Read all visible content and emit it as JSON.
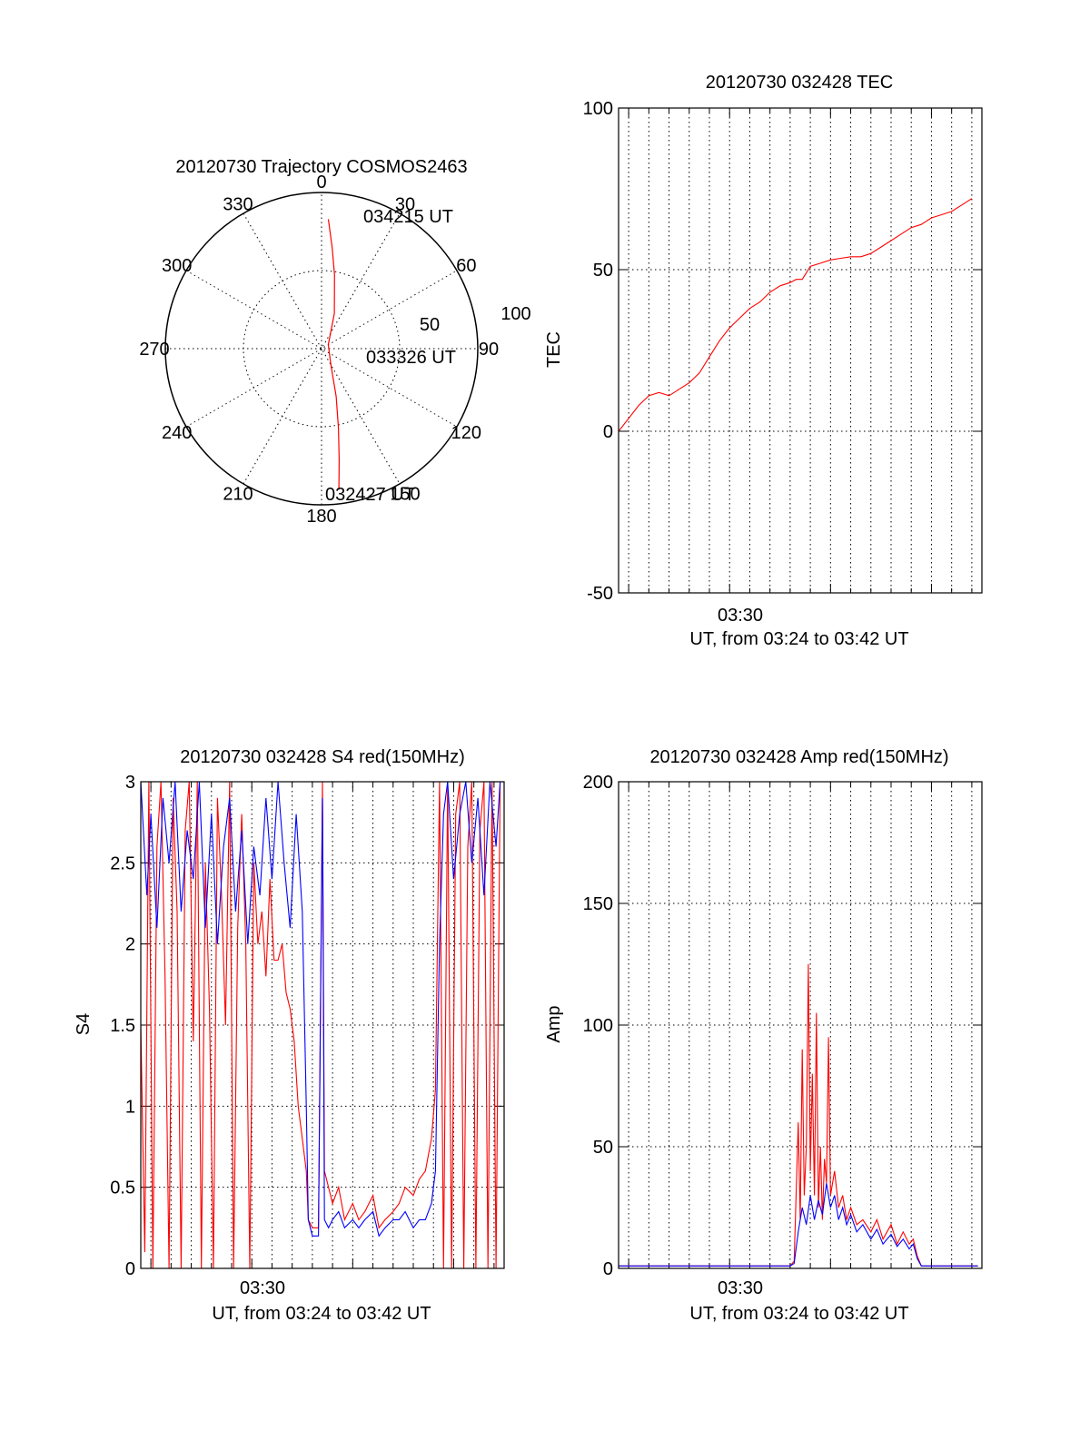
{
  "chart_data": [
    {
      "type": "polar",
      "title": "20120730 Trajectory COSMOS2463",
      "azimuth_labels": [
        "0",
        "30",
        "60",
        "90",
        "120",
        "150",
        "180",
        "210",
        "240",
        "270",
        "300",
        "330"
      ],
      "radial_labels": [
        "50",
        "100"
      ],
      "radial_max": 100,
      "trajectory": {
        "color": "#ff0000",
        "points": [
          {
            "az": 3,
            "r": 83
          },
          {
            "az": 6,
            "r": 65
          },
          {
            "az": 10,
            "r": 48
          },
          {
            "az": 20,
            "r": 24
          },
          {
            "az": 60,
            "r": 5
          },
          {
            "az": 150,
            "r": 12
          },
          {
            "az": 163,
            "r": 32
          },
          {
            "az": 168,
            "r": 52
          },
          {
            "az": 171,
            "r": 72
          },
          {
            "az": 173,
            "r": 91
          }
        ]
      },
      "time_labels": [
        "034215 UT",
        "033326 UT",
        "032427 UT"
      ]
    },
    {
      "type": "line",
      "title": "20120730 032428 TEC",
      "ylabel": "TEC",
      "xlabel": "UT, from 03:24 to 03:42 UT",
      "x_tick_labels": [
        "03:30"
      ],
      "xlim_min": [
        24.5,
        42.5
      ],
      "ylim": [
        -50,
        100
      ],
      "y_ticks": [
        -50,
        0,
        50,
        100
      ],
      "grid": true,
      "series": [
        {
          "color": "#ff0000",
          "points": [
            [
              24.5,
              0
            ],
            [
              25.0,
              4
            ],
            [
              25.5,
              8
            ],
            [
              26.0,
              11
            ],
            [
              26.5,
              12
            ],
            [
              27.0,
              11
            ],
            [
              27.5,
              13
            ],
            [
              28.0,
              15
            ],
            [
              28.5,
              18
            ],
            [
              29.0,
              23
            ],
            [
              29.5,
              28
            ],
            [
              30.0,
              32
            ],
            [
              30.5,
              35
            ],
            [
              31.0,
              38
            ],
            [
              31.5,
              40
            ],
            [
              32.0,
              43
            ],
            [
              32.5,
              45
            ],
            [
              33.0,
              46
            ],
            [
              33.3,
              47
            ],
            [
              33.6,
              47
            ],
            [
              34.0,
              51
            ],
            [
              34.5,
              52
            ],
            [
              35.0,
              53
            ],
            [
              35.5,
              53.5
            ],
            [
              36.0,
              54
            ],
            [
              36.5,
              54
            ],
            [
              37.0,
              55
            ],
            [
              37.5,
              57
            ],
            [
              38.0,
              59
            ],
            [
              38.5,
              61
            ],
            [
              39.0,
              63
            ],
            [
              39.5,
              64
            ],
            [
              40.0,
              66
            ],
            [
              40.5,
              67
            ],
            [
              41.0,
              68
            ],
            [
              41.5,
              70
            ],
            [
              42.0,
              72
            ]
          ]
        }
      ]
    },
    {
      "type": "line",
      "title": "20120730 032428 S4 red(150MHz)",
      "ylabel": "S4",
      "xlabel": "UT, from 03:24 to 03:42 UT",
      "x_tick_labels": [
        "03:30"
      ],
      "xlim_min": [
        24.5,
        42.5
      ],
      "ylim": [
        0,
        3
      ],
      "y_ticks": [
        0,
        0.5,
        1,
        1.5,
        2,
        2.5,
        3
      ],
      "grid": true,
      "series": [
        {
          "color": "#ff0000",
          "points": [
            [
              24.5,
              1.5
            ],
            [
              24.7,
              0.1
            ],
            [
              24.9,
              3
            ],
            [
              25.1,
              0
            ],
            [
              25.3,
              2.6
            ],
            [
              25.5,
              3
            ],
            [
              25.7,
              1.8
            ],
            [
              25.9,
              0
            ],
            [
              26.1,
              2.9
            ],
            [
              26.3,
              2.2
            ],
            [
              26.5,
              0
            ],
            [
              26.7,
              2.7
            ],
            [
              26.9,
              3
            ],
            [
              27.1,
              1.4
            ],
            [
              27.3,
              3
            ],
            [
              27.5,
              0
            ],
            [
              27.7,
              2.5
            ],
            [
              27.9,
              1.6
            ],
            [
              28.1,
              0
            ],
            [
              28.3,
              2.9
            ],
            [
              28.5,
              2.3
            ],
            [
              28.7,
              1.5
            ],
            [
              28.9,
              3
            ],
            [
              29.1,
              0
            ],
            [
              29.3,
              2.1
            ],
            [
              29.5,
              2.8
            ],
            [
              29.7,
              2.0
            ],
            [
              29.9,
              0
            ],
            [
              30.1,
              2.5
            ],
            [
              30.3,
              2.0
            ],
            [
              30.5,
              2.2
            ],
            [
              30.7,
              1.8
            ],
            [
              30.9,
              2.4
            ],
            [
              31.1,
              1.9
            ],
            [
              31.3,
              1.9
            ],
            [
              31.5,
              2.0
            ],
            [
              31.7,
              1.7
            ],
            [
              31.9,
              1.6
            ],
            [
              32.1,
              1.4
            ],
            [
              32.3,
              1.0
            ],
            [
              32.5,
              0.8
            ],
            [
              32.7,
              0.6
            ],
            [
              32.8,
              0.3
            ],
            [
              33.0,
              0.25
            ],
            [
              33.3,
              0.25
            ],
            [
              33.5,
              3
            ],
            [
              33.6,
              0.6
            ],
            [
              33.8,
              0.5
            ],
            [
              34.0,
              0.4
            ],
            [
              34.3,
              0.5
            ],
            [
              34.6,
              0.3
            ],
            [
              35.0,
              0.4
            ],
            [
              35.3,
              0.3
            ],
            [
              35.6,
              0.35
            ],
            [
              36.0,
              0.45
            ],
            [
              36.3,
              0.25
            ],
            [
              36.6,
              0.3
            ],
            [
              37.0,
              0.35
            ],
            [
              37.3,
              0.4
            ],
            [
              37.6,
              0.5
            ],
            [
              38.0,
              0.45
            ],
            [
              38.3,
              0.55
            ],
            [
              38.6,
              0.6
            ],
            [
              38.9,
              0.8
            ],
            [
              39.1,
              1.1
            ],
            [
              39.3,
              3
            ],
            [
              39.5,
              0
            ],
            [
              39.7,
              3
            ],
            [
              39.9,
              0
            ],
            [
              40.1,
              2.8
            ],
            [
              40.3,
              3
            ],
            [
              40.5,
              0
            ],
            [
              40.7,
              2.6
            ],
            [
              40.9,
              3
            ],
            [
              41.1,
              0
            ],
            [
              41.3,
              2.7
            ],
            [
              41.5,
              3
            ],
            [
              41.7,
              0
            ],
            [
              41.9,
              3
            ],
            [
              42.1,
              0
            ],
            [
              42.3,
              3
            ]
          ]
        },
        {
          "color": "#0000ff",
          "points": [
            [
              24.5,
              3
            ],
            [
              24.8,
              2.3
            ],
            [
              25.0,
              2.8
            ],
            [
              25.3,
              2.1
            ],
            [
              25.6,
              2.9
            ],
            [
              25.9,
              2.5
            ],
            [
              26.2,
              3
            ],
            [
              26.5,
              2.2
            ],
            [
              26.8,
              2.7
            ],
            [
              27.1,
              2.4
            ],
            [
              27.4,
              3
            ],
            [
              27.7,
              2.1
            ],
            [
              28.0,
              2.8
            ],
            [
              28.3,
              2.0
            ],
            [
              28.6,
              2.6
            ],
            [
              28.9,
              2.9
            ],
            [
              29.2,
              2.2
            ],
            [
              29.5,
              2.7
            ],
            [
              29.8,
              2.0
            ],
            [
              30.1,
              2.6
            ],
            [
              30.4,
              2.3
            ],
            [
              30.7,
              2.9
            ],
            [
              31.0,
              2.4
            ],
            [
              31.3,
              3
            ],
            [
              31.6,
              2.5
            ],
            [
              31.9,
              2.1
            ],
            [
              32.2,
              2.8
            ],
            [
              32.5,
              2.2
            ],
            [
              32.7,
              1.0
            ],
            [
              32.8,
              0.3
            ],
            [
              33.0,
              0.2
            ],
            [
              33.3,
              0.2
            ],
            [
              33.5,
              2.9
            ],
            [
              33.6,
              0.3
            ],
            [
              33.8,
              0.25
            ],
            [
              34.0,
              0.3
            ],
            [
              34.3,
              0.35
            ],
            [
              34.6,
              0.25
            ],
            [
              35.0,
              0.3
            ],
            [
              35.3,
              0.25
            ],
            [
              35.6,
              0.3
            ],
            [
              36.0,
              0.35
            ],
            [
              36.3,
              0.2
            ],
            [
              36.6,
              0.25
            ],
            [
              37.0,
              0.3
            ],
            [
              37.3,
              0.3
            ],
            [
              37.6,
              0.35
            ],
            [
              38.0,
              0.25
            ],
            [
              38.3,
              0.3
            ],
            [
              38.6,
              0.3
            ],
            [
              38.9,
              0.4
            ],
            [
              39.1,
              0.6
            ],
            [
              39.3,
              2.0
            ],
            [
              39.5,
              2.8
            ],
            [
              39.7,
              3
            ],
            [
              40.0,
              2.4
            ],
            [
              40.3,
              2.8
            ],
            [
              40.6,
              3
            ],
            [
              40.9,
              2.5
            ],
            [
              41.2,
              2.9
            ],
            [
              41.5,
              2.3
            ],
            [
              41.8,
              3
            ],
            [
              42.1,
              2.6
            ],
            [
              42.3,
              3
            ]
          ]
        }
      ]
    },
    {
      "type": "line",
      "title": "20120730 032428 Amp red(150MHz)",
      "ylabel": "Amp",
      "xlabel": "UT, from 03:24 to 03:42 UT",
      "x_tick_labels": [
        "03:30"
      ],
      "xlim_min": [
        24.5,
        42.5
      ],
      "ylim": [
        0,
        200
      ],
      "y_ticks": [
        0,
        50,
        100,
        150,
        200
      ],
      "grid": true,
      "series": [
        {
          "color": "#ff0000",
          "points": [
            [
              24.5,
              1
            ],
            [
              28.0,
              1
            ],
            [
              31.0,
              1
            ],
            [
              33.0,
              1
            ],
            [
              33.2,
              3
            ],
            [
              33.4,
              60
            ],
            [
              33.5,
              20
            ],
            [
              33.6,
              90
            ],
            [
              33.7,
              30
            ],
            [
              33.8,
              50
            ],
            [
              33.9,
              125
            ],
            [
              34.0,
              40
            ],
            [
              34.1,
              80
            ],
            [
              34.2,
              30
            ],
            [
              34.3,
              105
            ],
            [
              34.4,
              25
            ],
            [
              34.5,
              50
            ],
            [
              34.6,
              20
            ],
            [
              34.7,
              45
            ],
            [
              34.8,
              35
            ],
            [
              34.9,
              95
            ],
            [
              35.0,
              30
            ],
            [
              35.2,
              40
            ],
            [
              35.4,
              25
            ],
            [
              35.6,
              30
            ],
            [
              35.8,
              20
            ],
            [
              36.0,
              25
            ],
            [
              36.3,
              18
            ],
            [
              36.6,
              20
            ],
            [
              37.0,
              15
            ],
            [
              37.3,
              20
            ],
            [
              37.6,
              12
            ],
            [
              38.0,
              18
            ],
            [
              38.3,
              10
            ],
            [
              38.6,
              15
            ],
            [
              38.9,
              10
            ],
            [
              39.1,
              12
            ],
            [
              39.3,
              5
            ],
            [
              39.5,
              1
            ],
            [
              40.0,
              1
            ],
            [
              42.3,
              1
            ]
          ]
        },
        {
          "color": "#0000ff",
          "points": [
            [
              24.5,
              1
            ],
            [
              28.0,
              1
            ],
            [
              31.0,
              1
            ],
            [
              33.0,
              1
            ],
            [
              33.2,
              2
            ],
            [
              33.4,
              15
            ],
            [
              33.6,
              25
            ],
            [
              33.8,
              18
            ],
            [
              34.0,
              30
            ],
            [
              34.2,
              20
            ],
            [
              34.4,
              28
            ],
            [
              34.6,
              22
            ],
            [
              34.8,
              35
            ],
            [
              35.0,
              25
            ],
            [
              35.2,
              30
            ],
            [
              35.4,
              20
            ],
            [
              35.6,
              25
            ],
            [
              35.8,
              18
            ],
            [
              36.0,
              22
            ],
            [
              36.3,
              15
            ],
            [
              36.6,
              18
            ],
            [
              37.0,
              12
            ],
            [
              37.3,
              16
            ],
            [
              37.6,
              10
            ],
            [
              38.0,
              14
            ],
            [
              38.3,
              9
            ],
            [
              38.6,
              12
            ],
            [
              38.9,
              8
            ],
            [
              39.1,
              10
            ],
            [
              39.3,
              4
            ],
            [
              39.5,
              1
            ],
            [
              40.0,
              1
            ],
            [
              42.3,
              1
            ]
          ]
        }
      ]
    }
  ]
}
